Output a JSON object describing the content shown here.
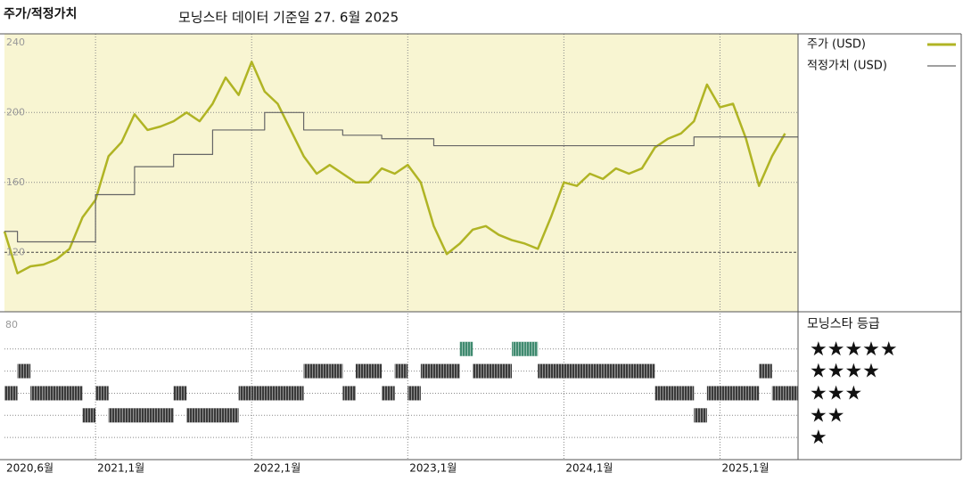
{
  "chart_data": [
    {
      "type": "line",
      "title": "주가/적정가치",
      "subtitle": "모닝스타 데이터 기준일 27. 6월 2025",
      "x": [
        "2020-06",
        "2020-07",
        "2020-08",
        "2020-09",
        "2020-10",
        "2020-11",
        "2020-12",
        "2021-01",
        "2021-02",
        "2021-03",
        "2021-04",
        "2021-05",
        "2021-06",
        "2021-07",
        "2021-08",
        "2021-09",
        "2021-10",
        "2021-11",
        "2021-12",
        "2022-01",
        "2022-02",
        "2022-03",
        "2022-04",
        "2022-05",
        "2022-06",
        "2022-07",
        "2022-08",
        "2022-09",
        "2022-10",
        "2022-11",
        "2022-12",
        "2023-01",
        "2023-02",
        "2023-03",
        "2023-04",
        "2023-05",
        "2023-06",
        "2023-07",
        "2023-08",
        "2023-09",
        "2023-10",
        "2023-11",
        "2023-12",
        "2024-01",
        "2024-02",
        "2024-03",
        "2024-04",
        "2024-05",
        "2024-06",
        "2024-07",
        "2024-08",
        "2024-09",
        "2024-10",
        "2024-11",
        "2024-12",
        "2025-01",
        "2025-02",
        "2025-03",
        "2025-04",
        "2025-05",
        "2025-06"
      ],
      "series": [
        {
          "name": "주가 (USD)",
          "color": "#b0b424",
          "values": [
            132,
            108,
            112,
            113,
            116,
            122,
            140,
            150,
            175,
            183,
            199,
            190,
            192,
            195,
            200,
            195,
            205,
            220,
            210,
            229,
            212,
            205,
            190,
            175,
            165,
            170,
            165,
            160,
            160,
            168,
            165,
            170,
            160,
            135,
            119,
            125,
            133,
            135,
            130,
            127,
            125,
            122,
            140,
            160,
            158,
            165,
            162,
            168,
            165,
            168,
            180,
            185,
            188,
            195,
            216,
            203,
            205,
            185,
            158,
            175,
            188
          ]
        },
        {
          "name": "적정가치 (USD)",
          "color": "#666666",
          "step": true,
          "values": [
            132,
            126,
            126,
            126,
            126,
            126,
            126,
            153,
            153,
            153,
            169,
            169,
            169,
            176,
            176,
            176,
            190,
            190,
            190,
            190,
            200,
            200,
            200,
            190,
            190,
            190,
            187,
            187,
            187,
            185,
            185,
            185,
            185,
            181,
            181,
            181,
            181,
            181,
            181,
            181,
            181,
            181,
            181,
            181,
            181,
            181,
            181,
            181,
            181,
            181,
            181,
            181,
            181,
            186,
            186,
            186,
            186,
            186,
            186,
            186,
            186
          ]
        }
      ],
      "xlim": [
        "2020-06",
        "2025-07"
      ],
      "xticks": [
        "2021-01",
        "2022-01",
        "2023-01",
        "2024-01",
        "2025-01"
      ],
      "ylim": [
        86,
        245
      ],
      "yticks": [
        120,
        160,
        200,
        240
      ],
      "grid": true
    },
    {
      "type": "rating",
      "title": "모닝스타 등급",
      "corner_label": "80",
      "x": [
        "2020-06",
        "2020-07",
        "2020-08",
        "2020-09",
        "2020-10",
        "2020-11",
        "2020-12",
        "2021-01",
        "2021-02",
        "2021-03",
        "2021-04",
        "2021-05",
        "2021-06",
        "2021-07",
        "2021-08",
        "2021-09",
        "2021-10",
        "2021-11",
        "2021-12",
        "2022-01",
        "2022-02",
        "2022-03",
        "2022-04",
        "2022-05",
        "2022-06",
        "2022-07",
        "2022-08",
        "2022-09",
        "2022-10",
        "2022-11",
        "2022-12",
        "2023-01",
        "2023-02",
        "2023-03",
        "2023-04",
        "2023-05",
        "2023-06",
        "2023-07",
        "2023-08",
        "2023-09",
        "2023-10",
        "2023-11",
        "2023-12",
        "2024-01",
        "2024-02",
        "2024-03",
        "2024-04",
        "2024-05",
        "2024-06",
        "2024-07",
        "2024-08",
        "2024-09",
        "2024-10",
        "2024-11",
        "2024-12",
        "2025-01",
        "2025-02",
        "2025-03",
        "2025-04",
        "2025-05",
        "2025-06"
      ],
      "values": [
        3,
        4,
        3,
        3,
        3,
        3,
        2,
        3,
        2,
        2,
        2,
        2,
        2,
        3,
        2,
        2,
        2,
        2,
        3,
        3,
        3,
        3,
        3,
        4,
        4,
        4,
        3,
        4,
        4,
        3,
        4,
        3,
        4,
        4,
        4,
        5,
        4,
        4,
        4,
        5,
        5,
        4,
        4,
        4,
        4,
        4,
        4,
        4,
        4,
        4,
        3,
        3,
        3,
        2,
        3,
        3,
        3,
        3,
        4,
        3,
        3
      ],
      "color": "#3a3a3a",
      "top_color": "#3f8a6f",
      "xlim": [
        "2020-06",
        "2025-07"
      ],
      "xticks": [
        {
          "value": "2020-06",
          "label": "2020,6월"
        },
        {
          "value": "2021-01",
          "label": "2021,1월"
        },
        {
          "value": "2022-01",
          "label": "2022,1월"
        },
        {
          "value": "2023-01",
          "label": "2023,1월"
        },
        {
          "value": "2024-01",
          "label": "2024,1월"
        },
        {
          "value": "2025-01",
          "label": "2025,1월"
        }
      ],
      "ylim": [
        0,
        6.6
      ],
      "yticks": [
        {
          "value": 5,
          "label": "★★★★★"
        },
        {
          "value": 4,
          "label": "★★★★"
        },
        {
          "value": 3,
          "label": "★★★"
        },
        {
          "value": 2,
          "label": "★★"
        },
        {
          "value": 1,
          "label": "★"
        }
      ]
    }
  ]
}
